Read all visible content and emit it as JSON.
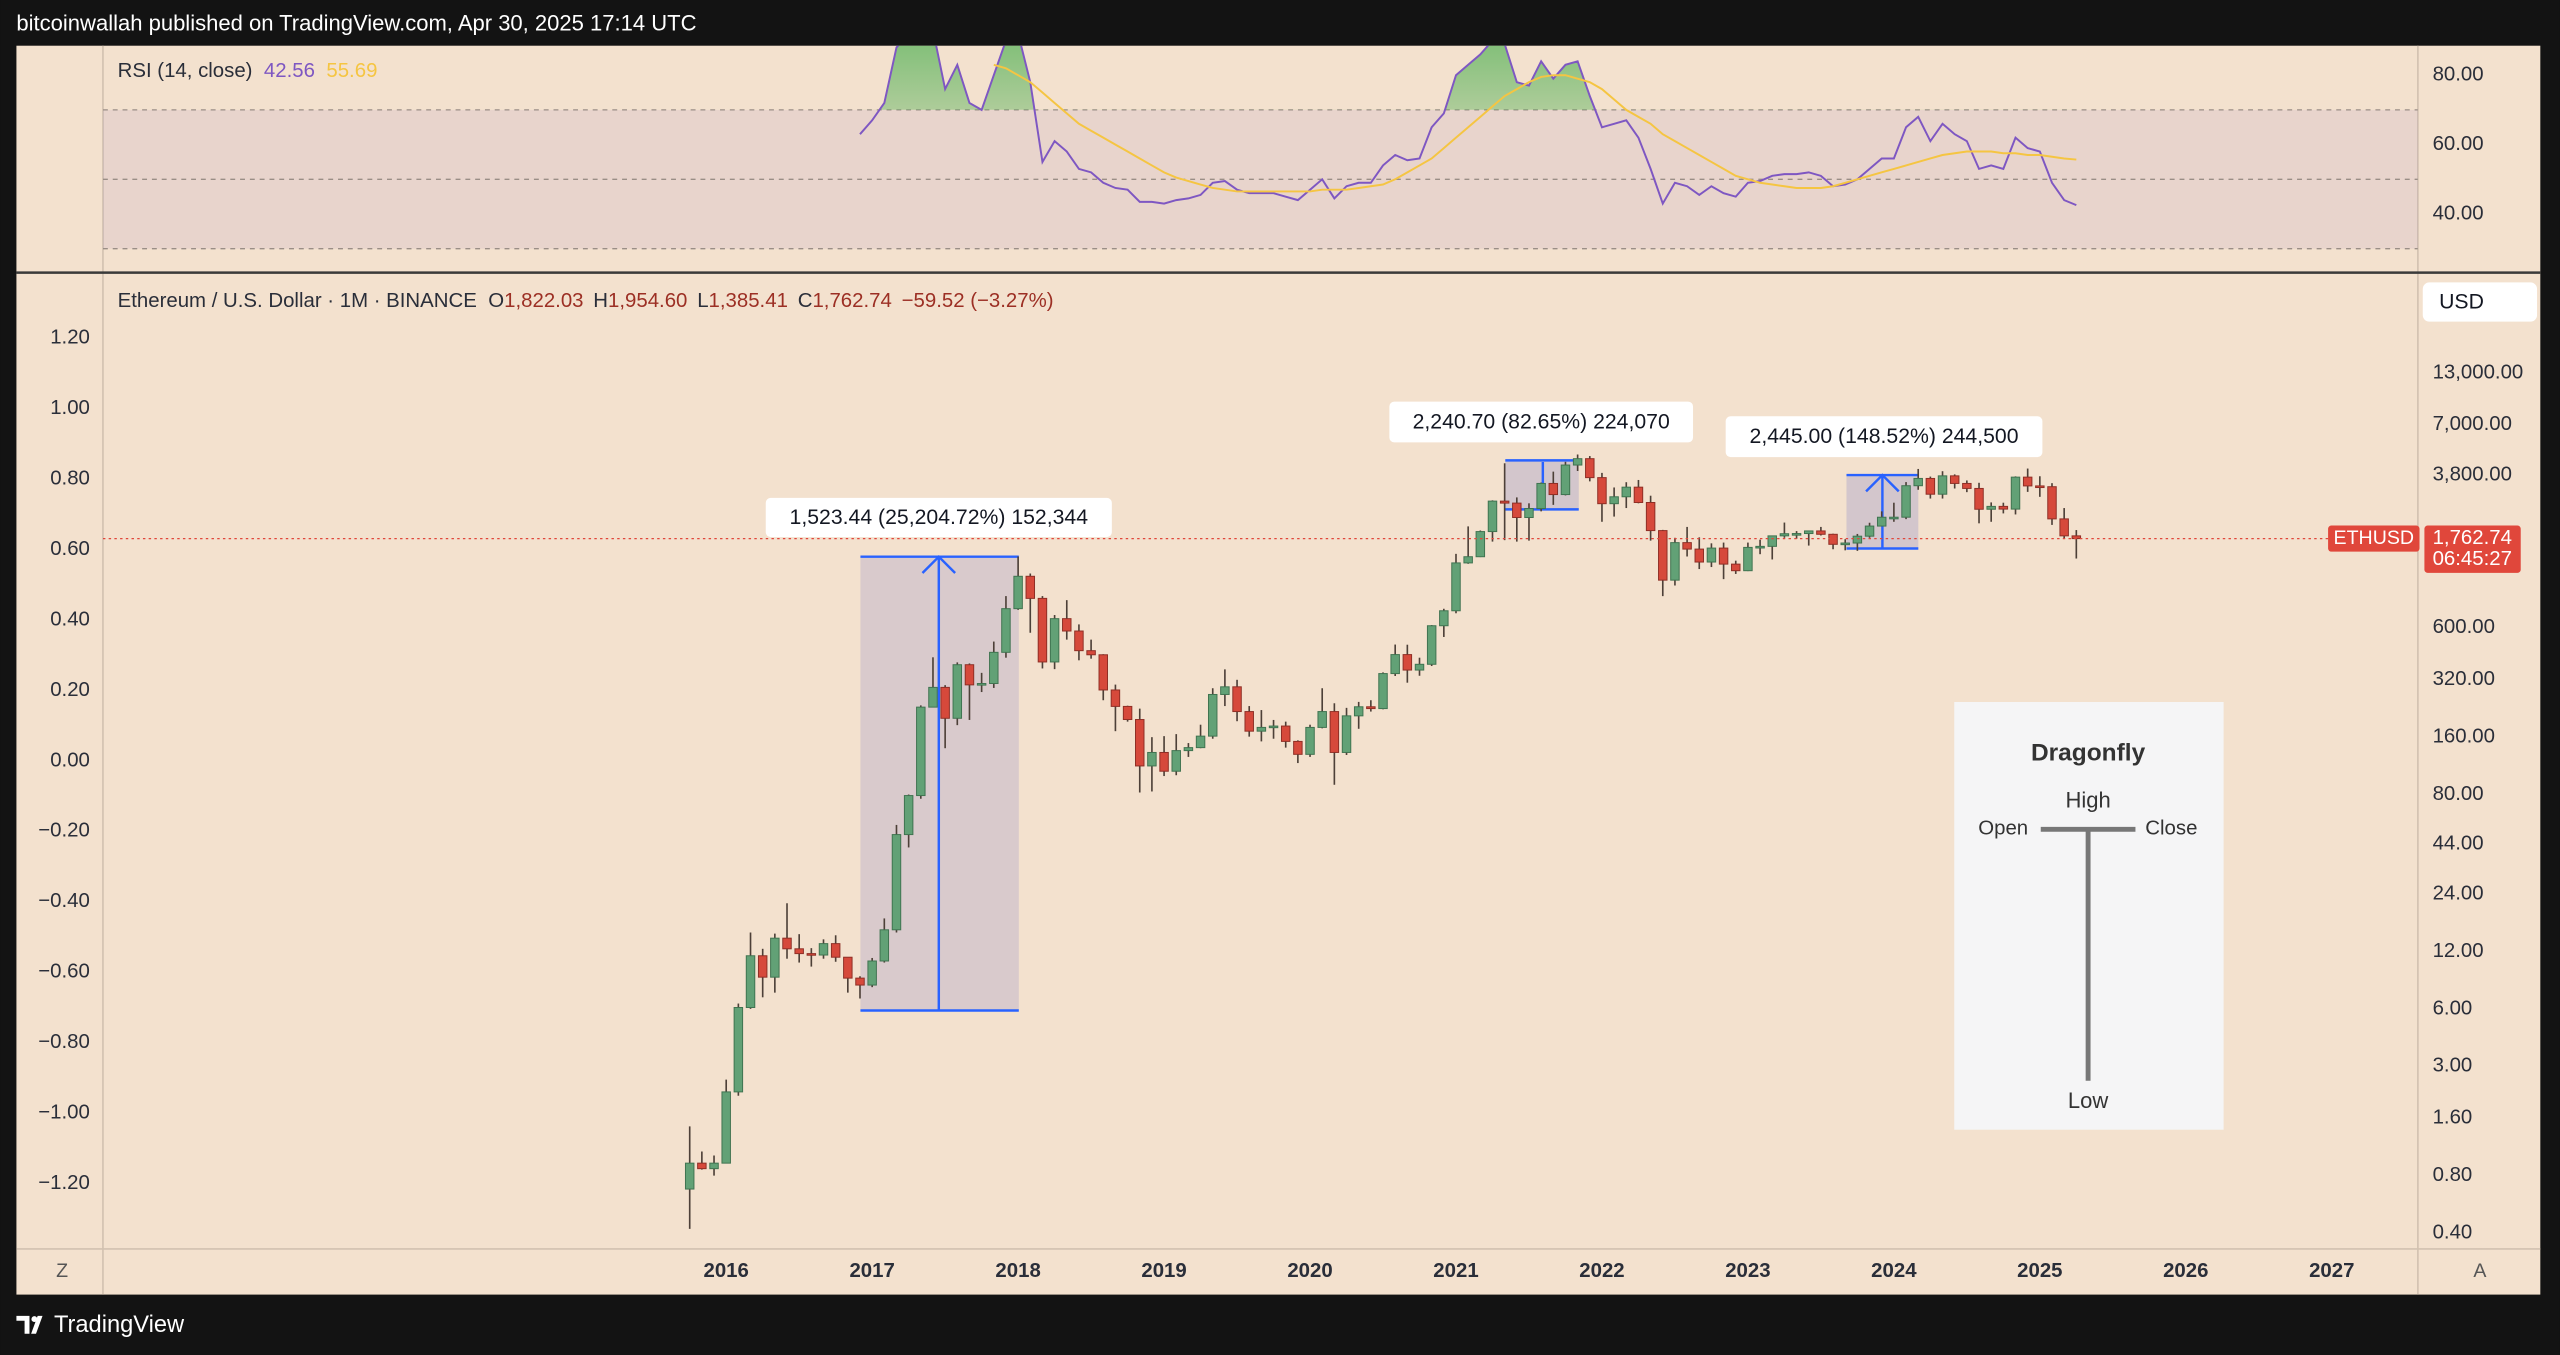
{
  "header": "bitcoinwallah published on TradingView.com, Apr 30, 2025 17:14 UTC",
  "footer": "TradingView",
  "chart_data": {
    "type": "candlestick",
    "title": "Ethereum / U.S. Dollar · 1M · BINANCE",
    "ohlc_legend": [
      {
        "key": "O",
        "text": "1,822.03"
      },
      {
        "key": "H",
        "text": "1,954.60"
      },
      {
        "key": "L",
        "text": "1,385.41"
      },
      {
        "key": "C",
        "text": "1,762.74"
      }
    ],
    "change": "−59.52 (−3.27%)",
    "x": [
      "2015-10",
      "2015-11",
      "2015-12",
      "2016-01",
      "2016-02",
      "2016-03",
      "2016-04",
      "2016-05",
      "2016-06",
      "2016-07",
      "2016-08",
      "2016-09",
      "2016-10",
      "2016-11",
      "2016-12",
      "2017-01",
      "2017-02",
      "2017-03",
      "2017-04",
      "2017-05",
      "2017-06",
      "2017-07",
      "2017-08",
      "2017-09",
      "2017-10",
      "2017-11",
      "2017-12",
      "2018-01",
      "2018-02",
      "2018-03",
      "2018-04",
      "2018-05",
      "2018-06",
      "2018-07",
      "2018-08",
      "2018-09",
      "2018-10",
      "2018-11",
      "2018-12",
      "2019-01",
      "2019-02",
      "2019-03",
      "2019-04",
      "2019-05",
      "2019-06",
      "2019-07",
      "2019-08",
      "2019-09",
      "2019-10",
      "2019-11",
      "2019-12",
      "2020-01",
      "2020-02",
      "2020-03",
      "2020-04",
      "2020-05",
      "2020-06",
      "2020-07",
      "2020-08",
      "2020-09",
      "2020-10",
      "2020-11",
      "2020-12",
      "2021-01",
      "2021-02",
      "2021-03",
      "2021-04",
      "2021-05",
      "2021-06",
      "2021-07",
      "2021-08",
      "2021-09",
      "2021-10",
      "2021-11",
      "2021-12",
      "2022-01",
      "2022-02",
      "2022-03",
      "2022-04",
      "2022-05",
      "2022-06",
      "2022-07",
      "2022-08",
      "2022-09",
      "2022-10",
      "2022-11",
      "2022-12",
      "2023-01",
      "2023-02",
      "2023-03",
      "2023-04",
      "2023-05",
      "2023-06",
      "2023-07",
      "2023-08",
      "2023-09",
      "2023-10",
      "2023-11",
      "2023-12",
      "2024-01",
      "2024-02",
      "2024-03",
      "2024-04",
      "2024-05",
      "2024-06",
      "2024-07",
      "2024-08",
      "2024-09",
      "2024-10",
      "2024-11",
      "2024-12",
      "2025-01",
      "2025-02",
      "2025-03",
      "2025-04"
    ],
    "open": [
      0.68,
      0.93,
      0.87,
      0.93,
      2.2,
      6.1,
      11.4,
      8.8,
      14.1,
      12.4,
      11.7,
      11.5,
      13.2,
      11.2,
      8.7,
      8.0,
      10.7,
      15.6,
      49.3,
      79,
      230,
      292,
      201,
      384,
      301,
      306,
      446,
      756,
      1118,
      856,
      397,
      670,
      577,
      455,
      433,
      283,
      232,
      198,
      113,
      133,
      106,
      136,
      141,
      162,
      268,
      294,
      218,
      172,
      180,
      183,
      152,
      130,
      180,
      218,
      133,
      207,
      231,
      226,
      345,
      434,
      360,
      386,
      615,
      737,
      1314,
      1416,
      1919,
      2773,
      2707,
      2275,
      2536,
      3433,
      3001,
      4288,
      4631,
      3683,
      2688,
      2922,
      3282,
      2727,
      1942,
      1067,
      1679,
      1553,
      1328,
      1572,
      1295,
      1196,
      1585,
      1605,
      1822,
      1870,
      1874,
      1934,
      1857,
      1645,
      1671,
      1815,
      2051,
      2282,
      2283,
      3340,
      3647,
      3014,
      3763,
      3433,
      3232,
      2513,
      2602,
      2518,
      3705,
      3332,
      3300,
      2237,
      1822.03
    ],
    "high": [
      1.45,
      1.07,
      1.02,
      2.55,
      6.4,
      15.1,
      12.4,
      14.9,
      21.5,
      14.8,
      12.5,
      13.9,
      14.6,
      11.2,
      8.9,
      11.1,
      17.9,
      55.4,
      80,
      235,
      420,
      300,
      395,
      390,
      348,
      508,
      880,
      1420,
      1156,
      880,
      700,
      838,
      625,
      520,
      436,
      302,
      234,
      226,
      160,
      162,
      166,
      149,
      186,
      289,
      363,
      320,
      233,
      222,
      197,
      193,
      154,
      186,
      289,
      241,
      228,
      245,
      250,
      350,
      490,
      489,
      418,
      620,
      755,
      1466,
      2043,
      1944,
      2800,
      4380,
      2900,
      2700,
      3470,
      3960,
      4460,
      4870,
      4780,
      3900,
      3270,
      3485,
      3580,
      2960,
      1960,
      1780,
      2030,
      1790,
      1665,
      1680,
      1350,
      1680,
      1740,
      1830,
      2140,
      1930,
      1935,
      2030,
      1870,
      1750,
      1865,
      2135,
      2450,
      2720,
      3490,
      4090,
      3730,
      3980,
      3830,
      3560,
      3460,
      2730,
      2720,
      3740,
      4110,
      3745,
      3445,
      2550,
      1954.6
    ],
    "low": [
      0.42,
      0.86,
      0.8,
      0.93,
      2.1,
      6.0,
      6.9,
      7.3,
      11.0,
      10.5,
      10.0,
      11.0,
      10.6,
      7.3,
      6.8,
      7.8,
      10.5,
      15.1,
      42.2,
      76,
      230,
      140,
      185,
      197,
      276,
      290,
      418,
      745,
      565,
      367,
      364,
      520,
      405,
      413,
      250,
      172,
      193,
      82,
      83,
      100,
      101,
      126,
      140,
      157,
      233,
      194,
      161,
      152,
      157,
      141,
      117,
      126,
      178,
      90,
      129,
      177,
      218,
      224,
      335,
      309,
      336,
      378,
      537,
      715,
      1300,
      1410,
      1700,
      1730,
      1700,
      1720,
      2450,
      2650,
      2970,
      3990,
      3520,
      2160,
      2300,
      2550,
      2700,
      1720,
      880,
      1000,
      1420,
      1220,
      1250,
      1080,
      1150,
      1190,
      1460,
      1370,
      1780,
      1760,
      1620,
      1830,
      1550,
      1530,
      1520,
      1780,
      2050,
      2160,
      2230,
      3180,
      2860,
      2860,
      3230,
      3090,
      2120,
      2160,
      2390,
      2360,
      3100,
      2920,
      2080,
      1755,
      1385.41
    ],
    "close": [
      0.93,
      0.87,
      0.93,
      2.2,
      6.1,
      11.4,
      8.8,
      14.1,
      12.4,
      11.7,
      11.5,
      13.2,
      11.2,
      8.7,
      8.0,
      10.7,
      15.6,
      49.3,
      79,
      230,
      292,
      201,
      384,
      301,
      306,
      446,
      756,
      1118,
      856,
      397,
      670,
      577,
      455,
      433,
      283,
      232,
      198,
      113,
      133,
      106,
      136,
      141,
      162,
      268,
      294,
      218,
      172,
      180,
      183,
      152,
      130,
      180,
      218,
      133,
      207,
      231,
      226,
      345,
      434,
      360,
      386,
      615,
      737,
      1314,
      1416,
      1919,
      2773,
      2707,
      2275,
      2536,
      3433,
      3001,
      4288,
      4631,
      3683,
      2688,
      2922,
      3282,
      2727,
      1942,
      1067,
      1679,
      1553,
      1328,
      1572,
      1295,
      1196,
      1585,
      1605,
      1822,
      1870,
      1874,
      1934,
      1857,
      1645,
      1671,
      1815,
      2051,
      2282,
      2283,
      3340,
      3647,
      3014,
      3763,
      3433,
      3232,
      2513,
      2602,
      2518,
      3705,
      3332,
      3300,
      2237,
      1822.26,
      1762.74
    ],
    "up_color": "#62a176",
    "down_color": "#d6493b",
    "wick_color": "#4d4038",
    "log_scale": true,
    "xlim": [
      2011.73,
      2027.59
    ],
    "xticks": [
      2016,
      2017,
      2018,
      2019,
      2020,
      2021,
      2022,
      2023,
      2024,
      2025,
      2026,
      2027
    ],
    "ylim": [
      0.33,
      43000
    ],
    "yticks": [
      {
        "value": 13000,
        "label": "13,000.00"
      },
      {
        "value": 7000,
        "label": "7,000.00"
      },
      {
        "value": 3800,
        "label": "3,800.00"
      },
      {
        "value": 600,
        "label": "600.00"
      },
      {
        "value": 320,
        "label": "320.00"
      },
      {
        "value": 160,
        "label": "160.00"
      },
      {
        "value": 80,
        "label": "80.00"
      },
      {
        "value": 44,
        "label": "44.00"
      },
      {
        "value": 24,
        "label": "24.00"
      },
      {
        "value": 12,
        "label": "12.00"
      },
      {
        "value": 6,
        "label": "6.00"
      },
      {
        "value": 3,
        "label": "3.00"
      },
      {
        "value": 1.6,
        "label": "1.60"
      },
      {
        "value": 0.8,
        "label": "0.80"
      },
      {
        "value": 0.4,
        "label": "0.40"
      }
    ],
    "y2lim": [
      -1.385,
      1.381
    ],
    "y2ticks": [
      {
        "value": 1.2,
        "label": "1.20"
      },
      {
        "value": 1,
        "label": "1.00"
      },
      {
        "value": 0.8,
        "label": "0.80"
      },
      {
        "value": 0.6,
        "label": "0.60"
      },
      {
        "value": 0.4,
        "label": "0.40"
      },
      {
        "value": 0.2,
        "label": "0.20"
      },
      {
        "value": 0,
        "label": "0.00"
      },
      {
        "value": -0.2,
        "label": "−0.20"
      },
      {
        "value": -0.4,
        "label": "−0.40"
      },
      {
        "value": -0.6,
        "label": "−0.60"
      },
      {
        "value": -0.8,
        "label": "−0.80"
      },
      {
        "value": -1,
        "label": "−1.00"
      },
      {
        "value": -1.2,
        "label": "−1.20"
      }
    ],
    "currency": "USD",
    "last_price": {
      "symbol": "ETHUSD",
      "value": 1762.74,
      "label": "1,762.74",
      "countdown": "06:45:27",
      "color": "#e0473b"
    },
    "annotations": [
      "1,523.44 (25,204.72%) 152,344",
      "2,240.70 (82.65%) 224,070",
      "2,445.00 (148.52%) 244,500"
    ],
    "pattern": {
      "title": "Dragonfly",
      "high": "High",
      "open": "Open",
      "close": "Close",
      "low": "Low"
    },
    "scale_buttons": [
      "Z",
      "A"
    ],
    "rsi": {
      "type": "line",
      "title": "RSI (14, close)",
      "series": [
        {
          "color": "#7e57c2",
          "value_label": "42.56",
          "values": [
            null,
            null,
            null,
            null,
            null,
            null,
            null,
            null,
            null,
            null,
            null,
            null,
            null,
            null,
            63,
            67,
            72,
            88,
            92,
            95,
            93,
            76,
            83,
            72,
            70,
            80,
            90,
            92,
            78,
            55,
            61,
            58,
            53,
            52,
            49,
            47.5,
            47,
            43.5,
            43.5,
            43,
            44,
            44.5,
            45.5,
            49,
            49.5,
            47,
            46,
            46,
            46,
            45,
            44,
            47,
            50,
            44.5,
            48,
            49,
            49,
            54,
            57,
            55.5,
            56,
            65,
            69,
            80,
            83,
            86,
            90,
            89,
            78,
            77,
            84,
            79,
            83,
            84,
            74,
            65,
            66,
            67,
            62,
            53,
            43,
            49,
            48,
            45.5,
            48,
            46,
            45,
            49,
            49.5,
            51,
            51.5,
            51.5,
            52,
            51,
            48,
            48.5,
            50,
            53,
            56,
            56,
            65,
            68,
            61,
            66,
            63,
            61,
            53,
            54,
            53,
            62,
            59,
            58,
            49,
            44,
            42.56
          ]
        },
        {
          "color": "#f5c542",
          "value_label": "55.69",
          "values": [
            null,
            null,
            null,
            null,
            null,
            null,
            null,
            null,
            null,
            null,
            null,
            null,
            null,
            null,
            null,
            null,
            null,
            null,
            null,
            null,
            null,
            null,
            null,
            null,
            null,
            83,
            82,
            80,
            78,
            75,
            72,
            69,
            66,
            64,
            62,
            60,
            58,
            56,
            54,
            52,
            50.5,
            49.5,
            48.5,
            47.5,
            47,
            46.5,
            46.5,
            46.5,
            46.5,
            46.5,
            46.5,
            46.5,
            47,
            47,
            47,
            47.5,
            48,
            48.5,
            50,
            52,
            54,
            56,
            59,
            62,
            65,
            68,
            71,
            74,
            76,
            78,
            79.5,
            80,
            80,
            79,
            78,
            76,
            73,
            70,
            68,
            66,
            63,
            61,
            59,
            57,
            55,
            53,
            51,
            50,
            49,
            48.5,
            48,
            47.5,
            47.5,
            47.5,
            48,
            49,
            50,
            51,
            52,
            53,
            54,
            55,
            56,
            57,
            57.5,
            58,
            58,
            58,
            57.5,
            57.5,
            57,
            57,
            56.5,
            56,
            55.69
          ]
        }
      ],
      "ylim": [
        23.1,
        88.5
      ],
      "yticks": [
        {
          "value": 80,
          "label": "80.00"
        },
        {
          "value": 60,
          "label": "60.00"
        },
        {
          "value": 40,
          "label": "40.00"
        }
      ],
      "levels": [
        70,
        50,
        30
      ],
      "overbought_color": "#4caf50"
    }
  }
}
